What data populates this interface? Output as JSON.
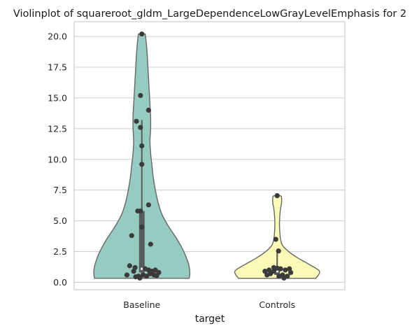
{
  "chart_data": {
    "type": "violin",
    "title": "Violinplot of squareroot_gldm_LargeDependenceLowGrayLevelEmphasis for 2",
    "xlabel": "target",
    "ylabel": "",
    "categories": [
      "Baseline",
      "Controls"
    ],
    "ylim": [
      -0.6,
      21.2
    ],
    "yticks": [
      0.0,
      2.5,
      5.0,
      7.5,
      10.0,
      12.5,
      15.0,
      17.5,
      20.0
    ],
    "ytick_labels": [
      "0.0",
      "2.5",
      "5.0",
      "7.5",
      "10.0",
      "12.5",
      "15.0",
      "17.5",
      "20.0"
    ],
    "grid": true,
    "series": [
      {
        "category": "Baseline",
        "color": "#96cbc2",
        "min": 0.33,
        "max": 20.2,
        "q1": 0.8,
        "median": 1.1,
        "q3": 5.8,
        "whisker_high": 13.2,
        "profile": [
          [
            0.33,
            0.7
          ],
          [
            0.8,
            0.71
          ],
          [
            1.5,
            0.69
          ],
          [
            2.5,
            0.62
          ],
          [
            3.5,
            0.52
          ],
          [
            4.5,
            0.4
          ],
          [
            5.5,
            0.3
          ],
          [
            6.5,
            0.24
          ],
          [
            7.5,
            0.2
          ],
          [
            8.5,
            0.17
          ],
          [
            9.5,
            0.15
          ],
          [
            10.5,
            0.13
          ],
          [
            11.5,
            0.12
          ],
          [
            12.5,
            0.13
          ],
          [
            13.5,
            0.13
          ],
          [
            14.5,
            0.12
          ],
          [
            15.5,
            0.11
          ],
          [
            16.5,
            0.1
          ],
          [
            17.5,
            0.09
          ],
          [
            18.5,
            0.08
          ],
          [
            19.5,
            0.065
          ],
          [
            20.2,
            0.05
          ]
        ],
        "points": [
          [
            0.0,
            20.2
          ],
          [
            -0.02,
            15.2
          ],
          [
            0.1,
            14.0
          ],
          [
            -0.02,
            12.6
          ],
          [
            -0.08,
            13.1
          ],
          [
            0.0,
            11.1
          ],
          [
            0.0,
            9.6
          ],
          [
            0.1,
            6.3
          ],
          [
            -0.02,
            5.8
          ],
          [
            -0.06,
            5.8
          ],
          [
            0.0,
            4.5
          ],
          [
            0.13,
            3.1
          ],
          [
            -0.15,
            3.8
          ],
          [
            -0.18,
            1.35
          ],
          [
            -0.1,
            1.2
          ],
          [
            0.05,
            1.1
          ],
          [
            0.1,
            1.0
          ],
          [
            0.15,
            0.9
          ],
          [
            0.2,
            1.0
          ],
          [
            0.25,
            0.8
          ],
          [
            -0.12,
            0.9
          ],
          [
            -0.22,
            0.6
          ],
          [
            -0.05,
            0.5
          ],
          [
            0.02,
            0.6
          ],
          [
            0.07,
            0.5
          ],
          [
            0.12,
            0.7
          ],
          [
            0.18,
            0.6
          ],
          [
            -0.03,
            0.35
          ],
          [
            -0.09,
            0.45
          ],
          [
            0.22,
            0.55
          ]
        ]
      },
      {
        "category": "Controls",
        "color": "#fbfbb7",
        "min": 0.33,
        "max": 7.05,
        "q1": 0.6,
        "median": 0.9,
        "q3": 1.1,
        "whisker_high": 2.5,
        "profile": [
          [
            0.33,
            0.57
          ],
          [
            0.7,
            0.62
          ],
          [
            1.0,
            0.61
          ],
          [
            1.5,
            0.46
          ],
          [
            2.0,
            0.3
          ],
          [
            2.5,
            0.17
          ],
          [
            3.0,
            0.08
          ],
          [
            3.5,
            0.05
          ],
          [
            4.0,
            0.04
          ],
          [
            4.5,
            0.035
          ],
          [
            5.0,
            0.035
          ],
          [
            5.5,
            0.04
          ],
          [
            6.0,
            0.05
          ],
          [
            6.5,
            0.065
          ],
          [
            7.0,
            0.06
          ],
          [
            7.05,
            0.0
          ]
        ],
        "points": [
          [
            0.0,
            7.05
          ],
          [
            -0.02,
            3.5
          ],
          [
            0.02,
            2.55
          ],
          [
            -0.05,
            1.2
          ],
          [
            0.0,
            1.15
          ],
          [
            0.05,
            1.1
          ],
          [
            0.12,
            1.0
          ],
          [
            -0.12,
            1.0
          ],
          [
            0.18,
            1.1
          ],
          [
            -0.18,
            0.9
          ],
          [
            -0.1,
            0.7
          ],
          [
            -0.05,
            0.9
          ],
          [
            0.08,
            0.6
          ],
          [
            0.15,
            0.5
          ],
          [
            -0.15,
            0.6
          ],
          [
            0.03,
            0.5
          ],
          [
            0.2,
            0.8
          ],
          [
            0.1,
            0.35
          ]
        ]
      }
    ]
  }
}
